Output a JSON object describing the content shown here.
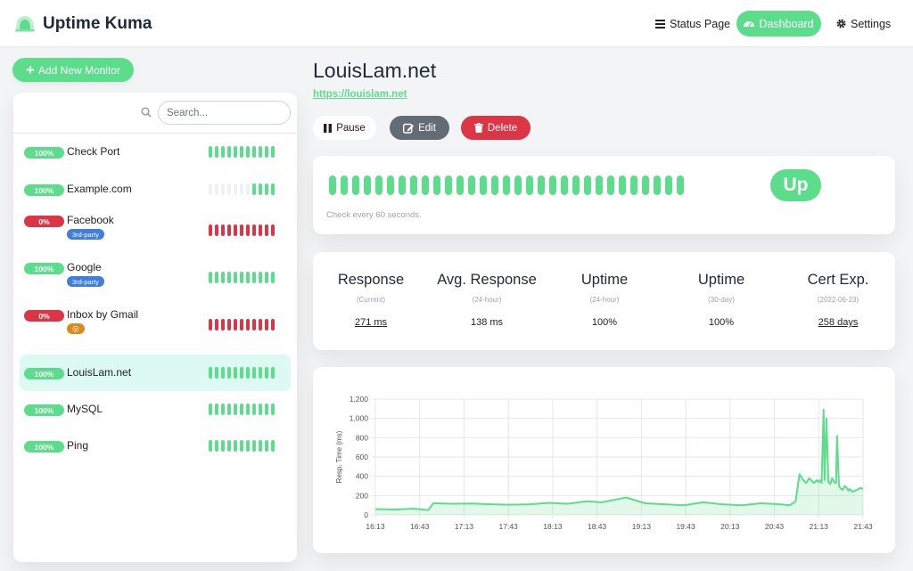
{
  "header": {
    "app_title": "Uptime Kuma",
    "nav": [
      {
        "label": "Status Page",
        "icon": "list-icon"
      },
      {
        "label": "Dashboard",
        "icon": "dashboard-gauge-icon",
        "active": true
      },
      {
        "label": "Settings",
        "icon": "gear-icon"
      }
    ]
  },
  "add_monitor_label": "Add New Monitor",
  "search": {
    "placeholder": "Search...",
    "value": ""
  },
  "monitors": [
    {
      "name": "Check Port",
      "uptime": "100%",
      "status": "up",
      "tag": null,
      "beats": "uuuuuuuuuuu"
    },
    {
      "name": "Example.com",
      "uptime": "100%",
      "status": "up",
      "tag": null,
      "beats": "eeeeeeeuuuu"
    },
    {
      "name": "Facebook",
      "uptime": "0%",
      "status": "down",
      "tag": "3rd-party",
      "beats": "ddddddddddd"
    },
    {
      "name": "Google",
      "uptime": "100%",
      "status": "up",
      "tag": "3rd-party",
      "beats": "uuuuuuuuuuu"
    },
    {
      "name": "Inbox by Gmail",
      "uptime": "0%",
      "status": "down",
      "tag": "😮",
      "beats": "ddddddddddd"
    },
    {
      "name": "LouisLam.net",
      "uptime": "100%",
      "status": "up",
      "tag": null,
      "beats": "uuuuuuuuuuu",
      "active": true
    },
    {
      "name": "MySQL",
      "uptime": "100%",
      "status": "up",
      "tag": null,
      "beats": "uuuuuuuuuuu"
    },
    {
      "name": "Ping",
      "uptime": "100%",
      "status": "up",
      "tag": null,
      "beats": "uuuuuuuuuuu"
    }
  ],
  "detail": {
    "title": "LouisLam.net",
    "url": "https://louislam.net",
    "buttons": {
      "pause": "Pause",
      "edit": "Edit",
      "delete": "Delete"
    },
    "heartbeat_count": 31,
    "status_badge": "Up",
    "check_text": "Check every 60 seconds.",
    "stats": [
      {
        "title": "Response",
        "sub": "(Current)",
        "value": "271 ms",
        "link": true
      },
      {
        "title": "Avg. Response",
        "sub": "(24-hour)",
        "value": "138 ms",
        "link": false
      },
      {
        "title": "Uptime",
        "sub": "(24-hour)",
        "value": "100%",
        "link": false
      },
      {
        "title": "Uptime",
        "sub": "(30-day)",
        "value": "100%",
        "link": false
      },
      {
        "title": "Cert Exp.",
        "sub": "(2022-06-23)",
        "value": "258 days",
        "link": true
      }
    ]
  },
  "colors": {
    "accent": "#5cdd8b",
    "danger": "#dc3545",
    "secondary": "#636b75"
  },
  "chart_data": {
    "type": "area",
    "ylabel": "Resp. Time (ms)",
    "ylim": [
      0,
      1200
    ],
    "yticks": [
      "0",
      "200",
      "400",
      "600",
      "800",
      "1,000",
      "1,200"
    ],
    "xticks": [
      "16:13",
      "16:43",
      "17:13",
      "17:43",
      "18:13",
      "18:43",
      "19:13",
      "19:43",
      "20:13",
      "20:43",
      "21:13",
      "21:43"
    ],
    "x_minutes": [
      0,
      20,
      40,
      55,
      60,
      80,
      100,
      120,
      140,
      160,
      180,
      200,
      220,
      235,
      240,
      250,
      260,
      280,
      300,
      320,
      340,
      360,
      380,
      400,
      420,
      430,
      436,
      440,
      444,
      447,
      450,
      453,
      455,
      458,
      460,
      462,
      463,
      465,
      466,
      468,
      470,
      472,
      474,
      476,
      478,
      479,
      481,
      483,
      485,
      487,
      489,
      491,
      492,
      495,
      500,
      503,
      506
    ],
    "values": [
      60,
      55,
      65,
      50,
      120,
      115,
      118,
      110,
      105,
      110,
      125,
      115,
      140,
      130,
      140,
      160,
      180,
      120,
      110,
      100,
      130,
      110,
      100,
      120,
      110,
      100,
      140,
      420,
      360,
      330,
      380,
      350,
      330,
      360,
      340,
      360,
      330,
      1090,
      360,
      1000,
      340,
      320,
      380,
      340,
      330,
      820,
      300,
      270,
      260,
      300,
      280,
      250,
      270,
      240,
      260,
      280,
      270
    ],
    "grid": true,
    "legend": "none"
  }
}
